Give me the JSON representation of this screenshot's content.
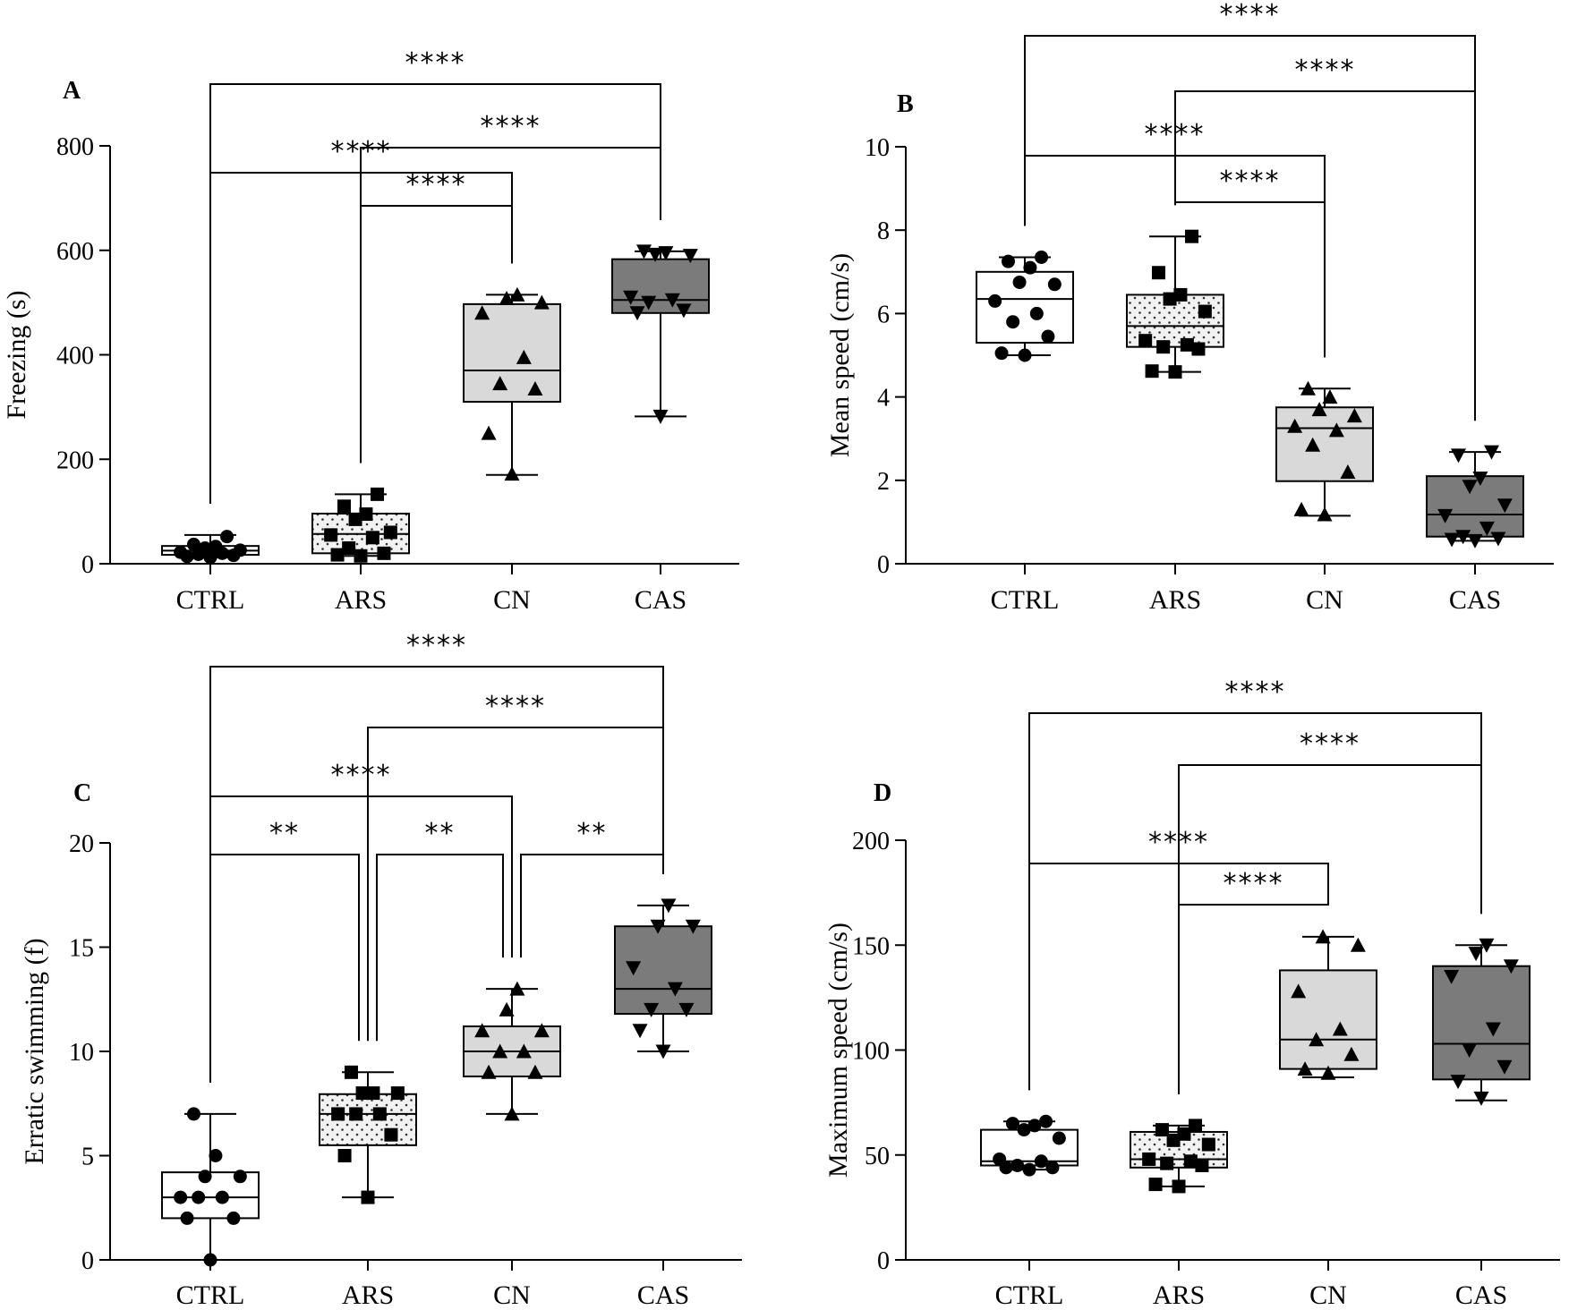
{
  "figure": {
    "title": ""
  },
  "colors": {
    "CTRL": "#ffffff",
    "ARS": "#efefef",
    "CN": "#d9d9d9",
    "CAS": "#7b7b7b",
    "ink": "#000000"
  },
  "chart_data": [
    {
      "panel": "A",
      "type": "box",
      "ylabel": "Freezing (s)",
      "ylim": [
        0,
        800
      ],
      "yticks": [
        0,
        200,
        400,
        600,
        800
      ],
      "categories": [
        "CTRL",
        "ARS",
        "CN",
        "CAS"
      ],
      "boxes": [
        {
          "group": "CTRL",
          "min": 12,
          "q1": 17,
          "median": 25,
          "q3": 34,
          "max": 55,
          "marker": "circle",
          "pattern": "none",
          "points": [
            12,
            14,
            16,
            18,
            20,
            22,
            26,
            30,
            33,
            37,
            52
          ]
        },
        {
          "group": "ARS",
          "min": 15,
          "q1": 20,
          "median": 57,
          "q3": 96,
          "max": 133,
          "marker": "square",
          "pattern": "dots",
          "points": [
            15,
            17,
            20,
            30,
            50,
            55,
            60,
            85,
            95,
            110,
            133
          ]
        },
        {
          "group": "CN",
          "min": 170,
          "q1": 310,
          "median": 370,
          "q3": 497,
          "max": 515,
          "marker": "triangle-up",
          "pattern": "none",
          "points": [
            172,
            250,
            335,
            345,
            395,
            480,
            500,
            508,
            515
          ]
        },
        {
          "group": "CAS",
          "min": 282,
          "q1": 480,
          "median": 505,
          "q3": 583,
          "max": 598,
          "marker": "triangle-down",
          "pattern": "none",
          "points": [
            282,
            480,
            485,
            500,
            505,
            510,
            590,
            592,
            595,
            598
          ]
        }
      ],
      "comparisons": [
        {
          "from": "ARS",
          "to": "CN",
          "label": "****"
        },
        {
          "from": "CTRL",
          "to": "CN",
          "label": "****"
        },
        {
          "from": "ARS",
          "to": "CAS",
          "label": "****"
        },
        {
          "from": "CTRL",
          "to": "CAS",
          "label": "****"
        }
      ]
    },
    {
      "panel": "B",
      "type": "box",
      "ylabel": "Mean speed (cm/s)",
      "ylim": [
        0,
        10
      ],
      "yticks": [
        0,
        2,
        4,
        6,
        8,
        10
      ],
      "categories": [
        "CTRL",
        "ARS",
        "CN",
        "CAS"
      ],
      "boxes": [
        {
          "group": "CTRL",
          "min": 5.0,
          "q1": 5.3,
          "median": 6.35,
          "q3": 7.0,
          "max": 7.35,
          "marker": "circle",
          "pattern": "none",
          "points": [
            5.0,
            5.05,
            5.45,
            5.8,
            6.0,
            6.3,
            6.7,
            6.75,
            7.1,
            7.25,
            7.35
          ]
        },
        {
          "group": "ARS",
          "min": 4.6,
          "q1": 5.2,
          "median": 5.7,
          "q3": 6.45,
          "max": 7.85,
          "marker": "square",
          "pattern": "dots",
          "points": [
            4.6,
            4.62,
            5.15,
            5.2,
            5.25,
            5.35,
            6.05,
            6.35,
            6.45,
            6.98,
            7.85
          ]
        },
        {
          "group": "CN",
          "min": 1.15,
          "q1": 1.98,
          "median": 3.25,
          "q3": 3.75,
          "max": 4.2,
          "marker": "triangle-up",
          "pattern": "none",
          "points": [
            1.18,
            1.3,
            2.2,
            2.85,
            3.2,
            3.3,
            3.55,
            3.7,
            4.0,
            4.2
          ]
        },
        {
          "group": "CAS",
          "min": 0.55,
          "q1": 0.65,
          "median": 1.18,
          "q3": 2.1,
          "max": 2.68,
          "marker": "triangle-down",
          "pattern": "none",
          "points": [
            0.55,
            0.58,
            0.6,
            0.65,
            0.85,
            1.15,
            1.4,
            1.85,
            2.05,
            2.6,
            2.68
          ]
        }
      ],
      "comparisons": [
        {
          "from": "ARS",
          "to": "CN",
          "label": "****"
        },
        {
          "from": "CTRL",
          "to": "CN",
          "label": "****"
        },
        {
          "from": "ARS",
          "to": "CAS",
          "label": "****"
        },
        {
          "from": "CTRL",
          "to": "CAS",
          "label": "****"
        }
      ]
    },
    {
      "panel": "C",
      "type": "box",
      "ylabel": "Erratic swimming (f)",
      "ylim": [
        0,
        20
      ],
      "yticks": [
        0,
        5,
        10,
        15,
        20
      ],
      "categories": [
        "CTRL",
        "ARS",
        "CN",
        "CAS"
      ],
      "boxes": [
        {
          "group": "CTRL",
          "min": 0,
          "q1": 2,
          "median": 3,
          "q3": 4.2,
          "max": 7,
          "marker": "circle",
          "pattern": "none",
          "points": [
            0,
            2,
            2,
            3,
            3,
            3,
            4,
            4,
            5,
            7
          ]
        },
        {
          "group": "ARS",
          "min": 3,
          "q1": 5.5,
          "median": 7,
          "q3": 7.95,
          "max": 9,
          "marker": "square",
          "pattern": "dots",
          "points": [
            3,
            5,
            6,
            7,
            7,
            7,
            8,
            8,
            8,
            9
          ]
        },
        {
          "group": "CN",
          "min": 7,
          "q1": 8.8,
          "median": 10,
          "q3": 11.2,
          "max": 13,
          "marker": "triangle-up",
          "pattern": "none",
          "points": [
            7,
            9,
            9,
            10,
            10,
            11,
            11,
            12,
            13
          ]
        },
        {
          "group": "CAS",
          "min": 10,
          "q1": 11.8,
          "median": 13,
          "q3": 16,
          "max": 17,
          "marker": "triangle-down",
          "pattern": "none",
          "points": [
            10,
            11,
            12,
            12,
            13,
            14,
            16,
            16,
            17
          ]
        }
      ],
      "comparisons": [
        {
          "from": "CTRL",
          "to": "ARS",
          "label": "**"
        },
        {
          "from": "ARS",
          "to": "CN",
          "label": "**"
        },
        {
          "from": "CN",
          "to": "CAS",
          "label": "**"
        },
        {
          "from": "CTRL",
          "to": "CN",
          "label": "****"
        },
        {
          "from": "ARS",
          "to": "CAS",
          "label": "****"
        },
        {
          "from": "CTRL",
          "to": "CAS",
          "label": "****"
        }
      ]
    },
    {
      "panel": "D",
      "type": "box",
      "ylabel": "Maximum speed (cm/s)",
      "ylim": [
        0,
        200
      ],
      "yticks": [
        0,
        50,
        100,
        150,
        200
      ],
      "categories": [
        "CTRL",
        "ARS",
        "CN",
        "CAS"
      ],
      "boxes": [
        {
          "group": "CTRL",
          "min": 43,
          "q1": 45,
          "median": 47,
          "q3": 62,
          "max": 66,
          "marker": "circle",
          "pattern": "none",
          "points": [
            43,
            44,
            44,
            45,
            47,
            48,
            58,
            62,
            64,
            65,
            66
          ]
        },
        {
          "group": "ARS",
          "min": 35,
          "q1": 44,
          "median": 48,
          "q3": 61,
          "max": 64,
          "marker": "square",
          "pattern": "dots",
          "points": [
            35,
            36,
            45,
            46,
            47,
            48,
            55,
            57,
            60,
            62,
            64
          ]
        },
        {
          "group": "CN",
          "min": 87,
          "q1": 91,
          "median": 105,
          "q3": 138,
          "max": 154,
          "marker": "triangle-up",
          "pattern": "none",
          "points": [
            89,
            91,
            98,
            105,
            110,
            128,
            150,
            154
          ]
        },
        {
          "group": "CAS",
          "min": 76,
          "q1": 86,
          "median": 103,
          "q3": 140,
          "max": 150,
          "marker": "triangle-down",
          "pattern": "none",
          "points": [
            77,
            85,
            92,
            100,
            110,
            135,
            140,
            146,
            150
          ]
        }
      ],
      "comparisons": [
        {
          "from": "ARS",
          "to": "CN",
          "label": "****"
        },
        {
          "from": "CTRL",
          "to": "CN",
          "label": "****"
        },
        {
          "from": "ARS",
          "to": "CAS",
          "label": "****"
        },
        {
          "from": "CTRL",
          "to": "CAS",
          "label": "****"
        }
      ]
    }
  ]
}
